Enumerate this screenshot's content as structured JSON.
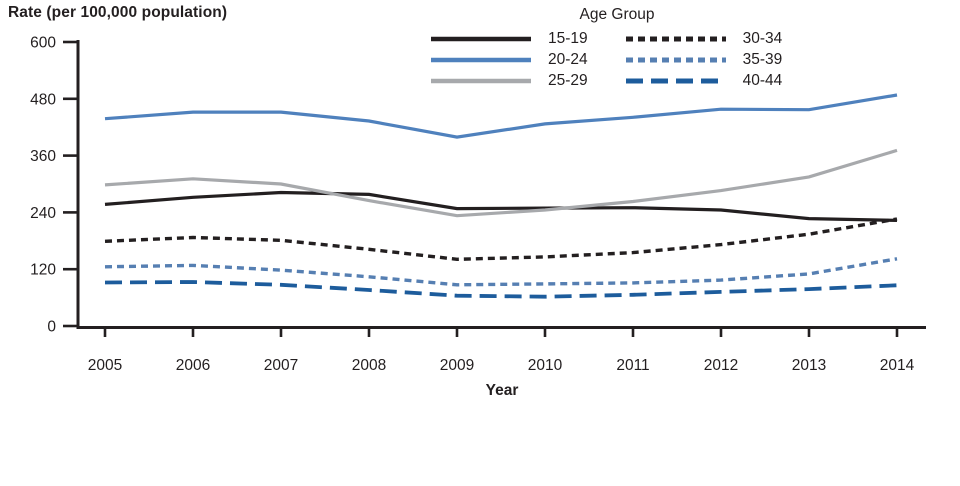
{
  "chart_data": {
    "type": "line",
    "title": "Rate (per 100,000 population)",
    "xlabel": "Year",
    "ylabel": "Rate (per 100,000 population)",
    "legend_title": "Age Group",
    "legend_position": "top-center",
    "grid": false,
    "x": [
      2005,
      2006,
      2007,
      2008,
      2009,
      2010,
      2011,
      2012,
      2013,
      2014
    ],
    "x_tick_labels": [
      "2005",
      "2006",
      "2007",
      "2008",
      "2009",
      "2010",
      "2011",
      "2012",
      "2013",
      "2014"
    ],
    "y_ticks": [
      0,
      120,
      240,
      360,
      480,
      600
    ],
    "y_tick_labels": [
      "0",
      "120",
      "240",
      "360",
      "480",
      "600"
    ],
    "ylim": [
      0,
      600
    ],
    "axis_color": "#231f20",
    "series": [
      {
        "name": "15-19",
        "style": "solid",
        "color": "#231f20",
        "values": [
          257,
          272,
          282,
          278,
          248,
          249,
          250,
          245,
          227,
          223
        ]
      },
      {
        "name": "20-24",
        "style": "solid",
        "color": "#4f81bd",
        "values": [
          438,
          452,
          452,
          433,
          399,
          427,
          441,
          458,
          457,
          488
        ]
      },
      {
        "name": "25-29",
        "style": "solid",
        "color": "#a7a9ac",
        "values": [
          298,
          311,
          300,
          265,
          233,
          245,
          263,
          286,
          315,
          371
        ]
      },
      {
        "name": "30-34",
        "style": "dotted",
        "color": "#231f20",
        "values": [
          179,
          187,
          181,
          162,
          141,
          146,
          155,
          172,
          194,
          226
        ]
      },
      {
        "name": "35-39",
        "style": "dotted",
        "color": "#567fb2",
        "values": [
          125,
          128,
          118,
          104,
          87,
          89,
          91,
          97,
          110,
          142
        ]
      },
      {
        "name": "40-44",
        "style": "dashed",
        "color": "#1d5c9c",
        "values": [
          92,
          93,
          87,
          76,
          64,
          62,
          66,
          72,
          78,
          86
        ]
      }
    ],
    "legend_columns": [
      [
        "15-19",
        "20-24",
        "25-29"
      ],
      [
        "30-34",
        "35-39",
        "40-44"
      ]
    ]
  }
}
